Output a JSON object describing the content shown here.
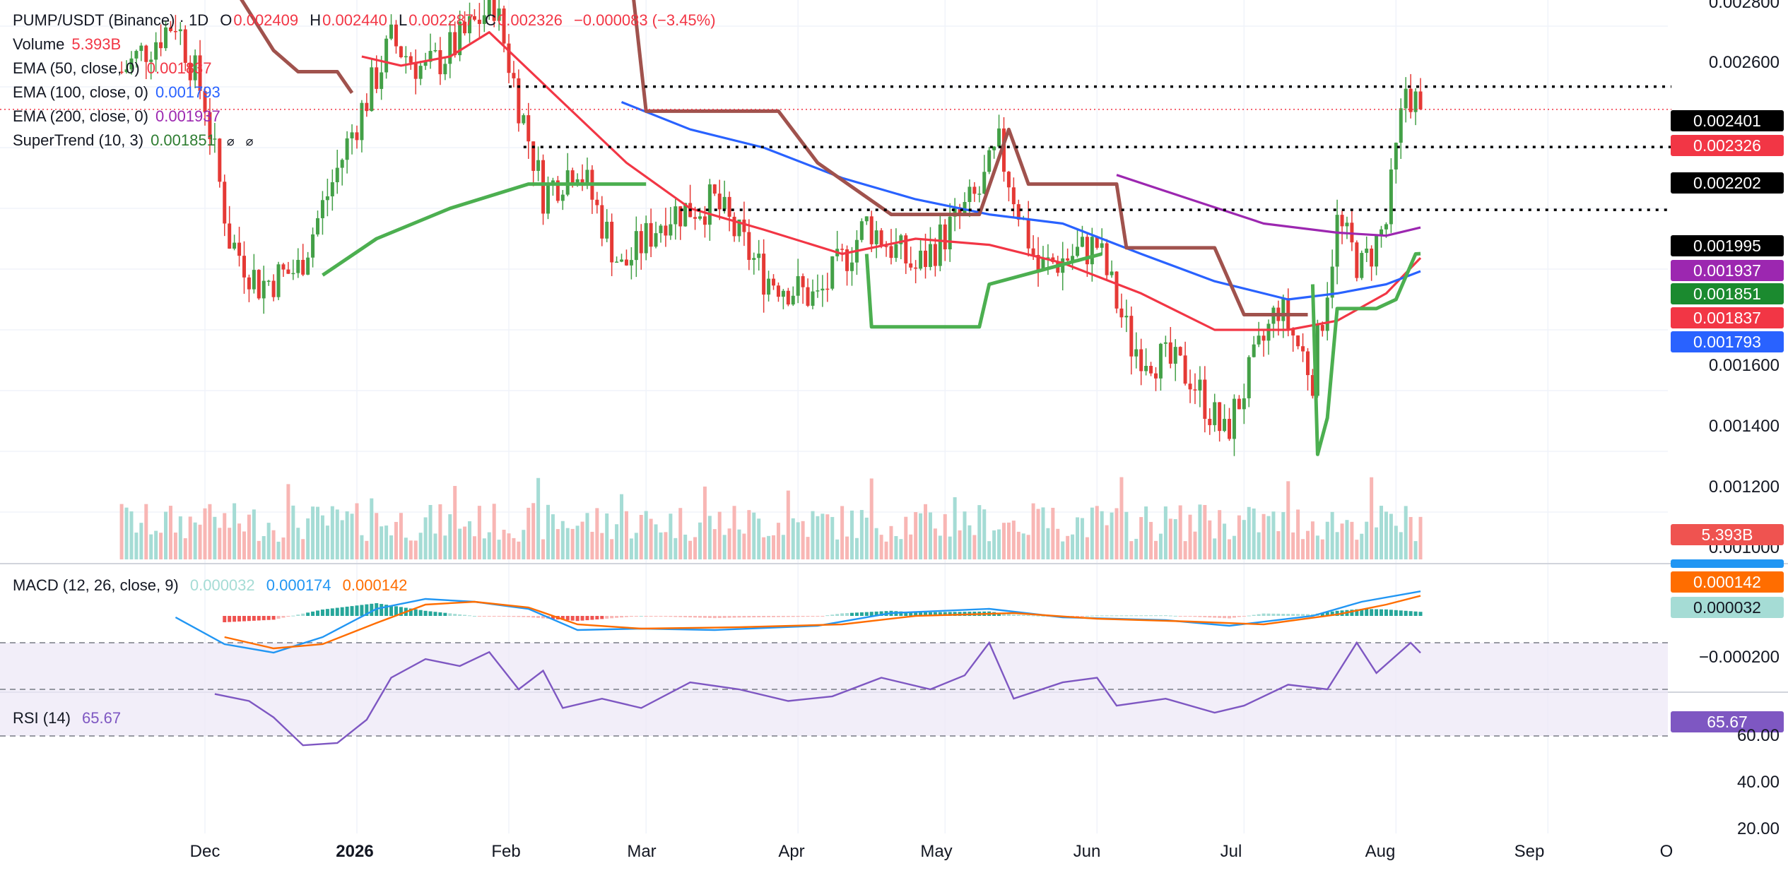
{
  "header": {
    "symbol": "PUMP/USDT (Binance) · 1D",
    "ohlc": {
      "o_label": "O",
      "o": "0.002409",
      "h_label": "H",
      "h": "0.002440",
      "l_label": "L",
      "l": "0.002287",
      "c_label": "C",
      "c": "0.002326"
    },
    "change": "−0.000083 (−3.45%)"
  },
  "legend": {
    "volume": {
      "name": "Volume",
      "value": "5.393B"
    },
    "ema50": {
      "name": "EMA (50, close, 0)",
      "value": "0.001837"
    },
    "ema100": {
      "name": "EMA (100, close, 0)",
      "value": "0.001793"
    },
    "ema200": {
      "name": "EMA (200, close, 0)",
      "value": "0.001937"
    },
    "supertrend": {
      "name": "SuperTrend (10, 3)",
      "value": "0.001851"
    },
    "macd": {
      "name": "MACD (12, 26, close, 9)",
      "hist": "0.000032",
      "macd": "0.000174",
      "signal": "0.000142"
    },
    "rsi": {
      "name": "RSI (14)",
      "value": "65.67"
    }
  },
  "price_axis": [
    "0.002800",
    "0.002600",
    "0.001600",
    "0.001400",
    "0.001200",
    "0.001000"
  ],
  "price_tags": {
    "line_2401": "0.002401",
    "last": "0.002326",
    "line_2202": "0.002202",
    "line_1995": "0.001995",
    "ema200": "0.001937",
    "supertrend": "0.001851",
    "ema50": "0.001837",
    "ema100": "0.001793",
    "volume": "5.393B"
  },
  "macd_axis": {
    "tick": "−0.000200",
    "tag_macd": "0.000174",
    "tag_signal": "0.000142",
    "tag_hist": "0.000032"
  },
  "rsi_axis": {
    "ticks": [
      "60.00",
      "40.00",
      "20.00"
    ],
    "tag": "65.67"
  },
  "time_axis": [
    "Dec",
    "2026",
    "Feb",
    "Mar",
    "Apr",
    "May",
    "Jun",
    "Jul",
    "Aug",
    "Sep",
    "O"
  ],
  "colors": {
    "up": "#26a69a",
    "down": "#ef5350",
    "up_body": "#43a047",
    "down_body": "#e53935",
    "ema50": "#f23645",
    "ema100": "#2962ff",
    "ema200": "#9c27b0",
    "st_up": "#4caf50",
    "st_down": "#a0524d",
    "macd": "#2196f3",
    "signal": "#ff6d00",
    "rsi": "#7e57c2"
  },
  "chart_data": [
    {
      "type": "candlestick",
      "title": "PUMP/USDT (Binance) · 1D",
      "x_range": [
        "2025-11-14",
        "2026-08-06"
      ],
      "y_range": [
        0.00097,
        0.0028
      ],
      "horizontal_levels": [
        0.002401,
        0.002202,
        0.001995
      ],
      "last_close": 0.002326,
      "points": [
        [
          "2025-11-14",
          0.00245
        ],
        [
          "2025-11-25",
          0.00262
        ],
        [
          "2025-12-01",
          0.00235
        ],
        [
          "2025-12-06",
          0.0019
        ],
        [
          "2025-12-12",
          0.00175
        ],
        [
          "2025-12-20",
          0.0018
        ],
        [
          "2025-12-31",
          0.00225
        ],
        [
          "2026-01-08",
          0.00255
        ],
        [
          "2026-01-15",
          0.00245
        ],
        [
          "2026-01-22",
          0.00255
        ],
        [
          "2026-01-29",
          0.00268
        ],
        [
          "2026-02-03",
          0.00235
        ],
        [
          "2026-02-08",
          0.00205
        ],
        [
          "2026-02-15",
          0.00215
        ],
        [
          "2026-02-24",
          0.0018
        ],
        [
          "2026-03-05",
          0.00198
        ],
        [
          "2026-03-15",
          0.00202
        ],
        [
          "2026-03-25",
          0.00178
        ],
        [
          "2026-04-05",
          0.0017
        ],
        [
          "2026-04-15",
          0.00195
        ],
        [
          "2026-04-25",
          0.0018
        ],
        [
          "2026-05-08",
          0.00205
        ],
        [
          "2026-05-12",
          0.0022
        ],
        [
          "2026-05-20",
          0.0018
        ],
        [
          "2026-06-01",
          0.00188
        ],
        [
          "2026-06-08",
          0.00155
        ],
        [
          "2026-06-20",
          0.00145
        ],
        [
          "2026-06-27",
          0.00125
        ],
        [
          "2026-07-08",
          0.00168
        ],
        [
          "2026-07-15",
          0.00145
        ],
        [
          "2026-07-20",
          0.00195
        ],
        [
          "2026-07-25",
          0.0018
        ],
        [
          "2026-07-30",
          0.00195
        ],
        [
          "2026-08-03",
          0.0024
        ],
        [
          "2026-08-06",
          0.002326
        ]
      ]
    },
    {
      "type": "line",
      "title": "",
      "x_range": [
        "2025-11-14",
        "2026-08-06"
      ],
      "series": [
        {
          "name": "EMA (50, close, 0)",
          "color": "#f23645",
          "points": [
            [
              "2026-01-02",
              0.0025
            ],
            [
              "2026-01-10",
              0.00247
            ],
            [
              "2026-01-20",
              0.0025
            ],
            [
              "2026-01-28",
              0.00258
            ],
            [
              "2026-02-10",
              0.00238
            ],
            [
              "2026-02-25",
              0.00215
            ],
            [
              "2026-03-10",
              0.002
            ],
            [
              "2026-03-25",
              0.00193
            ],
            [
              "2026-04-10",
              0.00185
            ],
            [
              "2026-04-25",
              0.0019
            ],
            [
              "2026-05-10",
              0.00188
            ],
            [
              "2026-05-25",
              0.00182
            ],
            [
              "2026-06-10",
              0.00172
            ],
            [
              "2026-06-25",
              0.0016
            ],
            [
              "2026-07-10",
              0.0016
            ],
            [
              "2026-07-20",
              0.00163
            ],
            [
              "2026-07-30",
              0.00172
            ],
            [
              "2026-08-06",
              0.001837
            ]
          ]
        },
        {
          "name": "EMA (100, close, 0)",
          "color": "#2962ff",
          "points": [
            [
              "2026-02-24",
              0.00235
            ],
            [
              "2026-03-10",
              0.00226
            ],
            [
              "2026-03-25",
              0.0022
            ],
            [
              "2026-04-10",
              0.0021
            ],
            [
              "2026-04-25",
              0.00203
            ],
            [
              "2026-05-10",
              0.00198
            ],
            [
              "2026-05-25",
              0.00195
            ],
            [
              "2026-06-10",
              0.00185
            ],
            [
              "2026-06-25",
              0.00176
            ],
            [
              "2026-07-10",
              0.0017
            ],
            [
              "2026-07-20",
              0.00172
            ],
            [
              "2026-07-30",
              0.00175
            ],
            [
              "2026-08-06",
              0.001793
            ]
          ]
        },
        {
          "name": "EMA (200, close, 0)",
          "color": "#9c27b0",
          "points": [
            [
              "2026-06-05",
              0.00211
            ],
            [
              "2026-06-20",
              0.00203
            ],
            [
              "2026-07-05",
              0.00195
            ],
            [
              "2026-07-20",
              0.00192
            ],
            [
              "2026-07-30",
              0.00191
            ],
            [
              "2026-08-06",
              0.001937
            ]
          ]
        },
        {
          "name": "SuperTrend (10, 3)",
          "color": "#4caf50",
          "points": [
            [
              "2025-12-25",
              0.00178
            ],
            [
              "2026-01-05",
              0.0019
            ],
            [
              "2026-01-20",
              0.002
            ],
            [
              "2026-02-05",
              0.00208
            ],
            [
              "2026-02-10",
              0.00208
            ],
            [
              "2026-03-01",
              0.00208
            ]
          ]
        },
        {
          "name": "SuperTrend up (Apr–Jun)",
          "color": "#4caf50",
          "points": [
            [
              "2026-04-15",
              0.00185
            ],
            [
              "2026-04-16",
              0.00161
            ],
            [
              "2026-05-08",
              0.00161
            ],
            [
              "2026-05-10",
              0.00175
            ],
            [
              "2026-06-02",
              0.00185
            ]
          ]
        },
        {
          "name": "SuperTrend up (Jul–Aug)",
          "color": "#4caf50",
          "points": [
            [
              "2026-07-15",
              0.00175
            ],
            [
              "2026-07-16",
              0.00119
            ],
            [
              "2026-07-18",
              0.00131
            ],
            [
              "2026-07-20",
              0.00167
            ],
            [
              "2026-07-28",
              0.00167
            ],
            [
              "2026-08-01",
              0.0017
            ],
            [
              "2026-08-05",
              0.00185
            ],
            [
              "2026-08-06",
              0.001851
            ]
          ]
        },
        {
          "name": "SuperTrend down (Nov–Jan)",
          "color": "#a0524d",
          "points": [
            [
              "2025-11-25",
              0.0031
            ],
            [
              "2025-12-06",
              0.00275
            ],
            [
              "2025-12-15",
              0.00252
            ],
            [
              "2025-12-20",
              0.00245
            ],
            [
              "2025-12-28",
              0.00245
            ],
            [
              "2025-12-31",
              0.00238
            ]
          ]
        },
        {
          "name": "SuperTrend down (Feb–Jul)",
          "color": "#a0524d",
          "points": [
            [
              "2026-02-03",
              0.00295
            ],
            [
              "2026-02-25",
              0.0029
            ],
            [
              "2026-03-01",
              0.00232
            ],
            [
              "2026-03-28",
              0.00232
            ],
            [
              "2026-04-05",
              0.00215
            ],
            [
              "2026-04-20",
              0.00198
            ],
            [
              "2026-05-08",
              0.00198
            ],
            [
              "2026-05-14",
              0.00226
            ],
            [
              "2026-05-18",
              0.00208
            ],
            [
              "2026-06-05",
              0.00208
            ],
            [
              "2026-06-07",
              0.00187
            ],
            [
              "2026-06-25",
              0.00187
            ],
            [
              "2026-07-01",
              0.00165
            ],
            [
              "2026-07-14",
              0.00165
            ]
          ]
        }
      ]
    },
    {
      "type": "bar",
      "title": "Volume",
      "x_range": [
        "2025-11-14",
        "2026-08-06"
      ],
      "last": "5.393B"
    },
    {
      "type": "line",
      "title": "MACD (12, 26, close, 9)",
      "y_range": [
        -0.00028,
        0.00026
      ],
      "series": [
        {
          "name": "MACD",
          "color": "#2196f3",
          "points": [
            [
              "2025-11-25",
              -1e-05
            ],
            [
              "2025-12-05",
              -0.0002
            ],
            [
              "2025-12-15",
              -0.00026
            ],
            [
              "2025-12-25",
              -0.00015
            ],
            [
              "2026-01-05",
              5e-05
            ],
            [
              "2026-01-15",
              0.00012
            ],
            [
              "2026-01-25",
              0.0001
            ],
            [
              "2026-02-05",
              5e-05
            ],
            [
              "2026-02-15",
              -0.0001
            ],
            [
              "2026-02-28",
              -9e-05
            ],
            [
              "2026-03-15",
              -0.0001
            ],
            [
              "2026-04-05",
              -7e-05
            ],
            [
              "2026-04-20",
              2e-05
            ],
            [
              "2026-05-10",
              5e-05
            ],
            [
              "2026-05-25",
              -1e-05
            ],
            [
              "2026-06-15",
              -3e-05
            ],
            [
              "2026-06-28",
              -7e-05
            ],
            [
              "2026-07-15",
              0.0
            ],
            [
              "2026-07-25",
              0.0001
            ],
            [
              "2026-08-06",
              0.000174
            ]
          ]
        },
        {
          "name": "Signal",
          "color": "#ff6d00",
          "points": [
            [
              "2025-12-05",
              -0.00015
            ],
            [
              "2025-12-15",
              -0.00023
            ],
            [
              "2025-12-25",
              -0.0002
            ],
            [
              "2026-01-05",
              -5e-05
            ],
            [
              "2026-01-15",
              8e-05
            ],
            [
              "2026-01-25",
              0.0001
            ],
            [
              "2026-02-05",
              6e-05
            ],
            [
              "2026-02-15",
              -6e-05
            ],
            [
              "2026-02-28",
              -9e-05
            ],
            [
              "2026-03-20",
              -8e-05
            ],
            [
              "2026-04-10",
              -6e-05
            ],
            [
              "2026-04-25",
              0.0
            ],
            [
              "2026-05-15",
              2e-05
            ],
            [
              "2026-06-01",
              -2e-05
            ],
            [
              "2026-06-20",
              -4e-05
            ],
            [
              "2026-07-05",
              -6e-05
            ],
            [
              "2026-07-20",
              1e-05
            ],
            [
              "2026-07-30",
              8e-05
            ],
            [
              "2026-08-06",
              0.000142
            ]
          ]
        }
      ]
    },
    {
      "type": "line",
      "title": "RSI (14)",
      "y_range": [
        20,
        75
      ],
      "bands": [
        30,
        50,
        70
      ],
      "series": [
        {
          "name": "RSI",
          "color": "#7e57c2",
          "points": [
            [
              "2025-12-03",
              48
            ],
            [
              "2025-12-10",
              45
            ],
            [
              "2025-12-15",
              38
            ],
            [
              "2025-12-21",
              26
            ],
            [
              "2025-12-28",
              27
            ],
            [
              "2026-01-03",
              37
            ],
            [
              "2026-01-08",
              55
            ],
            [
              "2026-01-15",
              63
            ],
            [
              "2026-01-22",
              60
            ],
            [
              "2026-01-28",
              66
            ],
            [
              "2026-02-03",
              50
            ],
            [
              "2026-02-08",
              58
            ],
            [
              "2026-02-12",
              42
            ],
            [
              "2026-02-20",
              46
            ],
            [
              "2026-02-28",
              42
            ],
            [
              "2026-03-10",
              53
            ],
            [
              "2026-03-20",
              50
            ],
            [
              "2026-03-30",
              45
            ],
            [
              "2026-04-08",
              47
            ],
            [
              "2026-04-18",
              55
            ],
            [
              "2026-04-28",
              50
            ],
            [
              "2026-05-05",
              56
            ],
            [
              "2026-05-10",
              70
            ],
            [
              "2026-05-15",
              46
            ],
            [
              "2026-05-25",
              53
            ],
            [
              "2026-06-01",
              55
            ],
            [
              "2026-06-05",
              43
            ],
            [
              "2026-06-15",
              46
            ],
            [
              "2026-06-25",
              40
            ],
            [
              "2026-07-01",
              43
            ],
            [
              "2026-07-10",
              52
            ],
            [
              "2026-07-18",
              50
            ],
            [
              "2026-07-24",
              70
            ],
            [
              "2026-07-28",
              57
            ],
            [
              "2026-08-04",
              70
            ],
            [
              "2026-08-06",
              65.67
            ]
          ]
        }
      ]
    }
  ]
}
